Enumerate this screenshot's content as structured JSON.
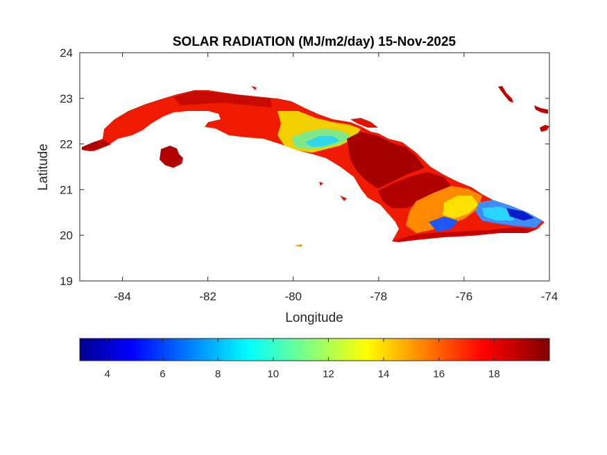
{
  "chart_data": {
    "type": "heatmap",
    "title": "SOLAR RADIATION (MJ/m2/day) 15-Nov-2025",
    "xlabel": "Longitude",
    "ylabel": "Latitude",
    "xlim": [
      -85,
      -74
    ],
    "ylim": [
      19,
      24
    ],
    "xticks": [
      "-84",
      "-82",
      "-80",
      "-78",
      "-76",
      "-74"
    ],
    "xtick_values": [
      -84,
      -82,
      -80,
      -78,
      -76,
      -74
    ],
    "yticks": [
      "19",
      "20",
      "21",
      "22",
      "23",
      "24"
    ],
    "ytick_values": [
      19,
      20,
      21,
      22,
      23,
      24
    ],
    "grid": false,
    "colormap": "jet",
    "colorbar": {
      "position": "bottom",
      "range": [
        3,
        20
      ],
      "ticks": [
        "4",
        "6",
        "8",
        "10",
        "12",
        "14",
        "16",
        "18"
      ],
      "tick_values": [
        4,
        6,
        8,
        10,
        12,
        14,
        16,
        18
      ]
    },
    "regions": [
      {
        "name": "island-main-west",
        "value": 18.5
      },
      {
        "name": "island-central",
        "value": 17.5
      },
      {
        "name": "island-central-low",
        "value": 11.5
      },
      {
        "name": "island-east",
        "value": 19.0
      },
      {
        "name": "island-southeast",
        "value": 15.0
      },
      {
        "name": "island-far-east",
        "value": 8.0
      },
      {
        "name": "island-of-youth",
        "value": 19.0
      }
    ],
    "dominant_colors": {
      "high": "#8b0000",
      "mid_high": "#ff2a00",
      "mid": "#ffd000",
      "low": "#0044ff"
    }
  }
}
